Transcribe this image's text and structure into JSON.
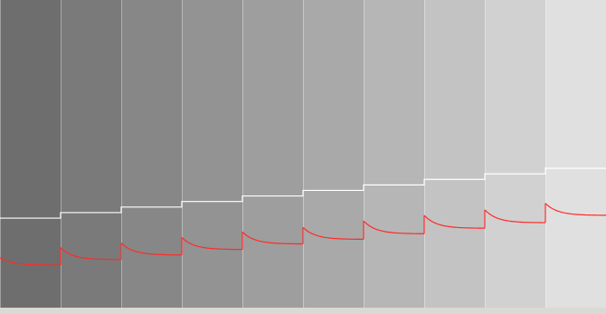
{
  "colors": {
    "frame": "#d9d9d6",
    "panel_border": "#ffffff",
    "white_trace": "#ffffff",
    "red_trace": "#ff2a2a"
  },
  "chart_data": {
    "type": "line",
    "title": "",
    "xlabel": "",
    "ylabel": "",
    "grid": false,
    "legend": "none",
    "panels": [
      {
        "index": 1,
        "fill": "#6e6e6e"
      },
      {
        "index": 2,
        "fill": "#7a7a7a"
      },
      {
        "index": 3,
        "fill": "#878787"
      },
      {
        "index": 4,
        "fill": "#939393"
      },
      {
        "index": 5,
        "fill": "#9e9e9e"
      },
      {
        "index": 6,
        "fill": "#a9a9a9"
      },
      {
        "index": 7,
        "fill": "#b6b6b6"
      },
      {
        "index": 8,
        "fill": "#c3c3c3"
      },
      {
        "index": 9,
        "fill": "#d1d1d1"
      },
      {
        "index": 10,
        "fill": "#e0e0e0"
      }
    ],
    "ylim": [
      0,
      100
    ],
    "series": [
      {
        "color": "#ffffff",
        "step_levels": [
          29.1,
          30.9,
          32.7,
          34.5,
          36.3,
          38.1,
          39.9,
          41.7,
          43.5,
          45.3
        ]
      },
      {
        "color": "#ff2a2a",
        "segments": [
          {
            "start": 16.2,
            "end": 13.8
          },
          {
            "start": 19.5,
            "end": 15.6
          },
          {
            "start": 21.0,
            "end": 17.1
          },
          {
            "start": 22.8,
            "end": 18.9
          },
          {
            "start": 24.6,
            "end": 20.7
          },
          {
            "start": 26.1,
            "end": 22.2
          },
          {
            "start": 28.2,
            "end": 24.0
          },
          {
            "start": 30.0,
            "end": 25.8
          },
          {
            "start": 31.8,
            "end": 27.6
          },
          {
            "start": 33.9,
            "end": 30.0
          }
        ]
      }
    ]
  }
}
